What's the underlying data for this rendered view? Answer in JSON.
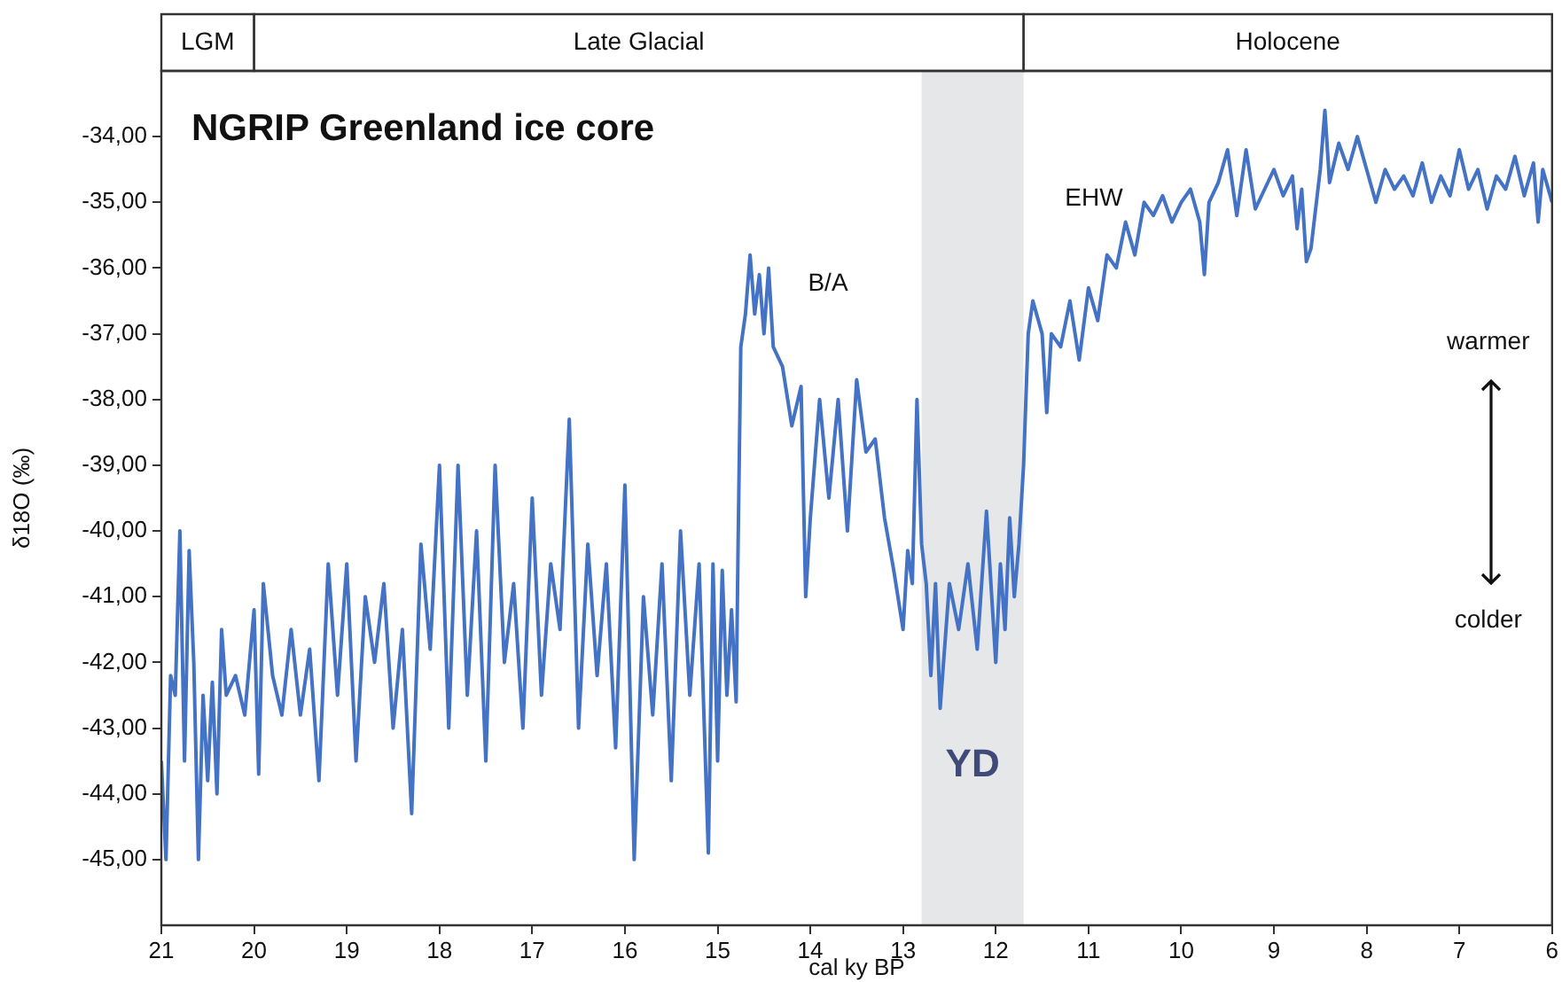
{
  "chart_data": {
    "type": "line",
    "title": "NGRIP Greenland ice core",
    "xlabel": "cal ky BP",
    "ylabel": "δ18O (‰)",
    "xlim": [
      21,
      6
    ],
    "xticks": [
      21,
      20,
      19,
      18,
      17,
      16,
      15,
      14,
      13,
      12,
      11,
      10,
      9,
      8,
      7,
      6
    ],
    "ylim": [
      -46,
      -33
    ],
    "yticks": [
      {
        "value": -34,
        "label": "-34,00"
      },
      {
        "value": -35,
        "label": "-35,00"
      },
      {
        "value": -36,
        "label": "-36,00"
      },
      {
        "value": -37,
        "label": "-37,00"
      },
      {
        "value": -38,
        "label": "-38,00"
      },
      {
        "value": -39,
        "label": "-39,00"
      },
      {
        "value": -40,
        "label": "-40,00"
      },
      {
        "value": -41,
        "label": "-41,00"
      },
      {
        "value": -42,
        "label": "-42,00"
      },
      {
        "value": -43,
        "label": "-43,00"
      },
      {
        "value": -44,
        "label": "-44,00"
      },
      {
        "value": -45,
        "label": "-45,00"
      }
    ],
    "grid": false,
    "legend": false,
    "marker": "none",
    "line_style": "solid",
    "series": [
      {
        "color": "#4472c4",
        "x": [
          21.0,
          20.95,
          20.9,
          20.85,
          20.8,
          20.75,
          20.7,
          20.65,
          20.6,
          20.55,
          20.5,
          20.45,
          20.4,
          20.35,
          20.3,
          20.2,
          20.1,
          20.0,
          19.95,
          19.9,
          19.8,
          19.7,
          19.6,
          19.5,
          19.4,
          19.3,
          19.2,
          19.1,
          19.0,
          18.9,
          18.8,
          18.7,
          18.6,
          18.5,
          18.4,
          18.3,
          18.2,
          18.1,
          18.0,
          17.9,
          17.8,
          17.7,
          17.6,
          17.5,
          17.4,
          17.3,
          17.2,
          17.1,
          17.0,
          16.9,
          16.8,
          16.7,
          16.6,
          16.5,
          16.4,
          16.3,
          16.2,
          16.1,
          16.0,
          15.9,
          15.8,
          15.7,
          15.6,
          15.5,
          15.4,
          15.3,
          15.2,
          15.1,
          15.05,
          15.0,
          14.95,
          14.9,
          14.85,
          14.8,
          14.78,
          14.75,
          14.7,
          14.65,
          14.6,
          14.55,
          14.5,
          14.45,
          14.4,
          14.3,
          14.2,
          14.1,
          14.05,
          14.0,
          13.9,
          13.8,
          13.7,
          13.6,
          13.5,
          13.4,
          13.3,
          13.2,
          13.1,
          13.0,
          12.95,
          12.9,
          12.85,
          12.8,
          12.75,
          12.7,
          12.65,
          12.6,
          12.5,
          12.4,
          12.3,
          12.2,
          12.1,
          12.0,
          11.95,
          11.9,
          11.85,
          11.8,
          11.75,
          11.7,
          11.65,
          11.6,
          11.5,
          11.45,
          11.4,
          11.3,
          11.2,
          11.1,
          11.0,
          10.9,
          10.8,
          10.7,
          10.6,
          10.5,
          10.4,
          10.3,
          10.2,
          10.1,
          10.0,
          9.9,
          9.8,
          9.75,
          9.7,
          9.6,
          9.5,
          9.4,
          9.3,
          9.2,
          9.1,
          9.0,
          8.9,
          8.8,
          8.75,
          8.7,
          8.65,
          8.6,
          8.5,
          8.45,
          8.4,
          8.3,
          8.2,
          8.1,
          8.0,
          7.9,
          7.8,
          7.7,
          7.6,
          7.5,
          7.4,
          7.3,
          7.2,
          7.1,
          7.0,
          6.9,
          6.8,
          6.7,
          6.6,
          6.5,
          6.4,
          6.3,
          6.2,
          6.15,
          6.1,
          6.0
        ],
        "values": [
          -43.5,
          -45,
          -42.2,
          -42.5,
          -40.0,
          -43.5,
          -40.3,
          -42.0,
          -45.0,
          -42.5,
          -43.8,
          -42.3,
          -44.0,
          -41.5,
          -42.5,
          -42.2,
          -42.8,
          -41.2,
          -43.7,
          -40.8,
          -42.2,
          -42.8,
          -41.5,
          -42.8,
          -41.8,
          -43.8,
          -40.5,
          -42.5,
          -40.5,
          -43.5,
          -41.0,
          -42.0,
          -40.8,
          -43.0,
          -41.5,
          -44.3,
          -40.2,
          -41.8,
          -39.0,
          -43.0,
          -39.0,
          -42.5,
          -40.0,
          -43.5,
          -39.0,
          -42.0,
          -40.8,
          -43.0,
          -39.5,
          -42.5,
          -40.5,
          -41.5,
          -38.3,
          -43.0,
          -40.2,
          -42.2,
          -40.5,
          -43.3,
          -39.3,
          -45.0,
          -41.0,
          -42.8,
          -40.5,
          -43.8,
          -40.0,
          -42.5,
          -40.5,
          -44.9,
          -40.5,
          -43.5,
          -40.6,
          -42.5,
          -41.2,
          -42.6,
          -40.3,
          -37.2,
          -36.7,
          -35.8,
          -36.7,
          -36.1,
          -37.0,
          -36.0,
          -37.2,
          -37.5,
          -38.4,
          -37.8,
          -41.0,
          -39.8,
          -38.0,
          -39.5,
          -38.0,
          -40.0,
          -37.7,
          -38.8,
          -38.6,
          -39.8,
          -40.6,
          -41.5,
          -40.3,
          -40.8,
          -38.0,
          -40.2,
          -40.8,
          -42.2,
          -40.8,
          -42.7,
          -40.8,
          -41.5,
          -40.5,
          -41.8,
          -39.7,
          -42.0,
          -40.5,
          -41.5,
          -39.8,
          -41.0,
          -40.2,
          -39.0,
          -37.0,
          -36.5,
          -37.0,
          -38.2,
          -37.0,
          -37.2,
          -36.5,
          -37.4,
          -36.3,
          -36.8,
          -35.8,
          -36.0,
          -35.3,
          -35.8,
          -35.0,
          -35.2,
          -34.9,
          -35.3,
          -35.0,
          -34.8,
          -35.3,
          -36.1,
          -35.0,
          -34.7,
          -34.2,
          -35.2,
          -34.2,
          -35.1,
          -34.8,
          -34.5,
          -34.9,
          -34.6,
          -35.4,
          -34.8,
          -35.9,
          -35.7,
          -34.5,
          -33.6,
          -34.7,
          -34.1,
          -34.5,
          -34.0,
          -34.5,
          -35.0,
          -34.5,
          -34.8,
          -34.6,
          -34.9,
          -34.4,
          -35.0,
          -34.6,
          -34.9,
          -34.2,
          -34.8,
          -34.5,
          -35.1,
          -34.6,
          -34.8,
          -34.3,
          -34.9,
          -34.4,
          -35.3,
          -34.5,
          -35.0
        ]
      }
    ],
    "bands": [
      {
        "axis": "x",
        "from": 12.8,
        "to": 11.7,
        "label": "YD",
        "color": "#e6e7e8"
      }
    ],
    "annotations": [
      "LGM",
      "Late Glacial",
      "Holocene",
      "B/A",
      "EHW",
      "warmer",
      "colder"
    ]
  }
}
